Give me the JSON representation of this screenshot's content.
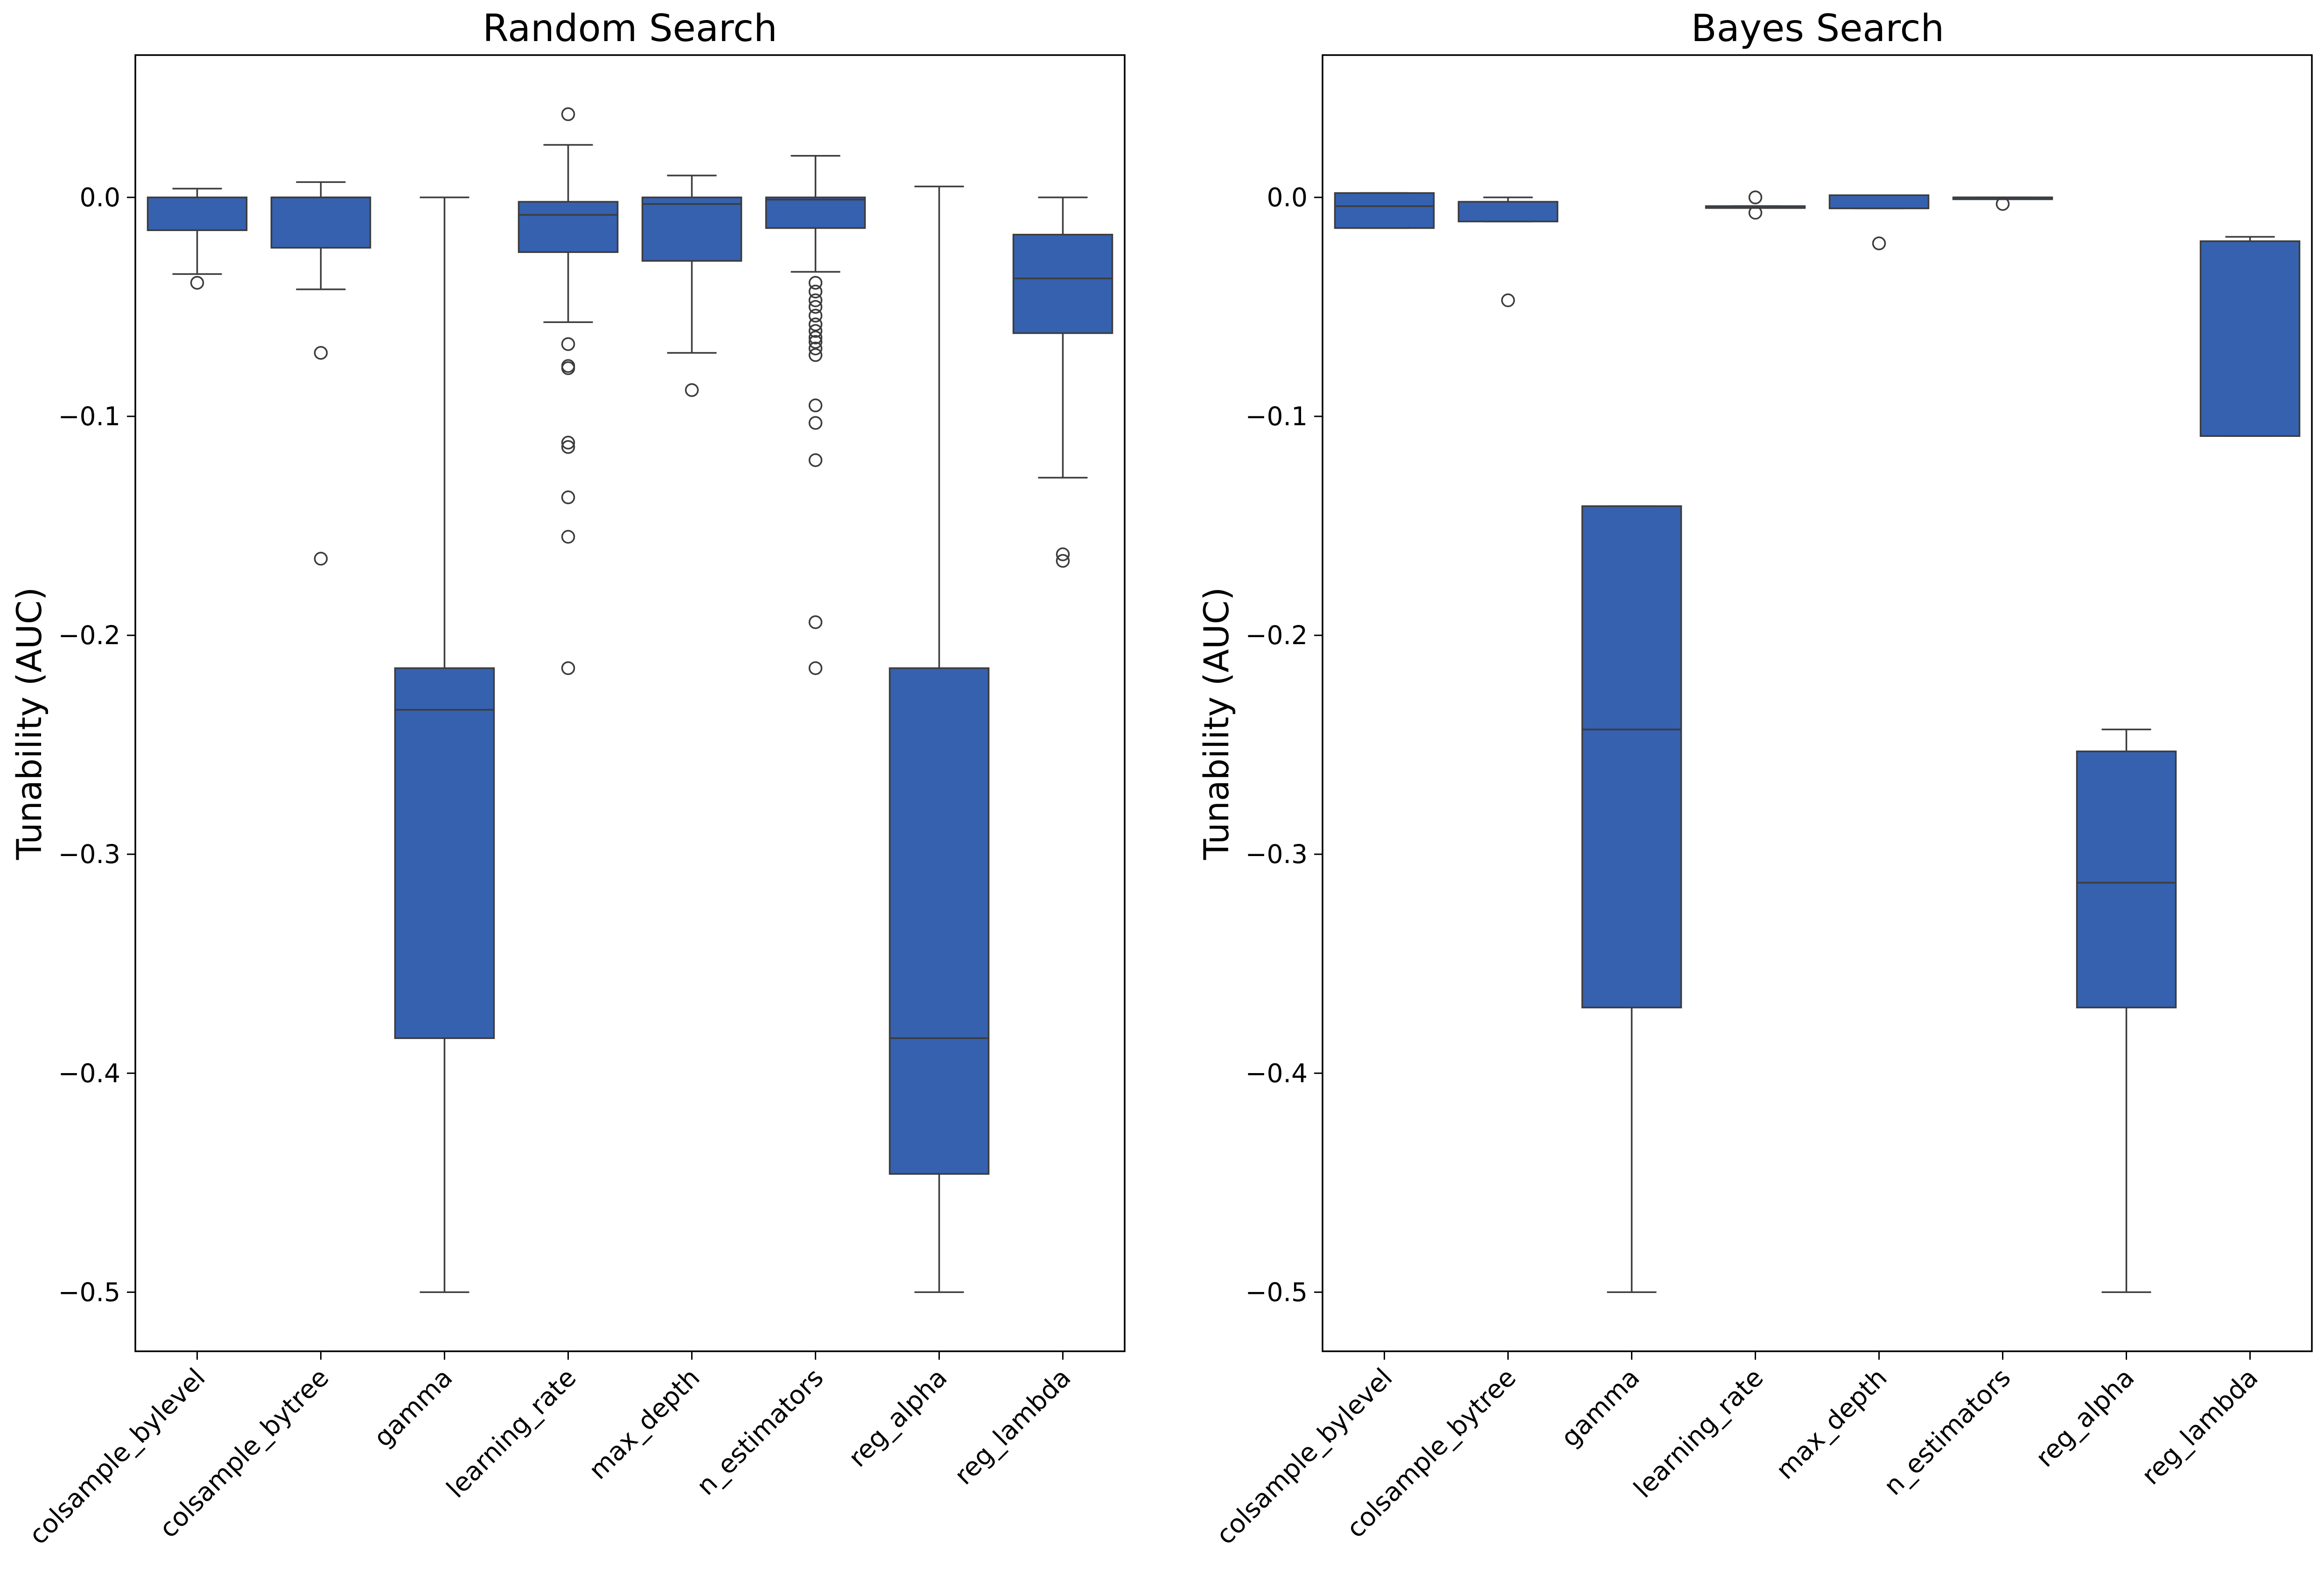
{
  "chart_data": [
    {
      "type": "box",
      "title": "Random Search",
      "ylabel": "Tunability (AUC)",
      "xlabel": "",
      "ylim": [
        -0.527,
        0.065
      ],
      "yticks": [
        0.0,
        -0.1,
        -0.2,
        -0.3,
        -0.4,
        -0.5
      ],
      "ytick_labels": [
        "0.0",
        "−0.1",
        "−0.2",
        "−0.3",
        "−0.4",
        "−0.5"
      ],
      "categories": [
        "colsample_bylevel",
        "colsample_bytree",
        "gamma",
        "learning_rate",
        "max_depth",
        "n_estimators",
        "reg_alpha",
        "reg_lambda"
      ],
      "boxes": [
        {
          "whisker_low": -0.035,
          "q1": -0.015,
          "median": -0.015,
          "q3": 0.0,
          "whisker_high": 0.004,
          "outliers": [
            -0.039
          ]
        },
        {
          "whisker_low": -0.042,
          "q1": -0.023,
          "median": 0.0,
          "q3": 0.0,
          "whisker_high": 0.007,
          "outliers": [
            -0.071,
            -0.165
          ]
        },
        {
          "whisker_low": -0.5,
          "q1": -0.384,
          "median": -0.234,
          "q3": -0.215,
          "whisker_high": 0.0,
          "outliers": []
        },
        {
          "whisker_low": -0.057,
          "q1": -0.025,
          "median": -0.008,
          "q3": -0.002,
          "whisker_high": 0.024,
          "outliers": [
            0.038,
            -0.067,
            -0.077,
            -0.078,
            -0.112,
            -0.114,
            -0.137,
            -0.155,
            -0.215
          ]
        },
        {
          "whisker_low": -0.071,
          "q1": -0.029,
          "median": -0.003,
          "q3": 0.0,
          "whisker_high": 0.01,
          "outliers": [
            -0.088
          ]
        },
        {
          "whisker_low": -0.034,
          "q1": -0.014,
          "median": -0.001,
          "q3": 0.0,
          "whisker_high": 0.019,
          "outliers": [
            -0.039,
            -0.043,
            -0.047,
            -0.05,
            -0.054,
            -0.058,
            -0.061,
            -0.064,
            -0.066,
            -0.069,
            -0.072,
            -0.095,
            -0.103,
            -0.12,
            -0.194,
            -0.215
          ]
        },
        {
          "whisker_low": -0.5,
          "q1": -0.446,
          "median": -0.384,
          "q3": -0.215,
          "whisker_high": 0.005,
          "outliers": []
        },
        {
          "whisker_low": -0.128,
          "q1": -0.062,
          "median": -0.037,
          "q3": -0.017,
          "whisker_high": 0.0,
          "outliers": [
            -0.163,
            -0.166
          ]
        }
      ]
    },
    {
      "type": "box",
      "title": "Bayes Search",
      "ylabel": "Tunability (AUC)",
      "xlabel": "",
      "ylim": [
        -0.527,
        0.065
      ],
      "yticks": [
        0.0,
        -0.1,
        -0.2,
        -0.3,
        -0.4,
        -0.5
      ],
      "ytick_labels": [
        "0.0",
        "−0.1",
        "−0.2",
        "−0.3",
        "−0.4",
        "−0.5"
      ],
      "categories": [
        "colsample_bylevel",
        "colsample_bytree",
        "gamma",
        "learning_rate",
        "max_depth",
        "n_estimators",
        "reg_alpha",
        "reg_lambda"
      ],
      "boxes": [
        {
          "whisker_low": -0.014,
          "q1": -0.014,
          "median": -0.004,
          "q3": 0.002,
          "whisker_high": 0.002,
          "outliers": []
        },
        {
          "whisker_low": -0.011,
          "q1": -0.011,
          "median": -0.002,
          "q3": -0.002,
          "whisker_high": 0.0,
          "outliers": [
            -0.047
          ]
        },
        {
          "whisker_low": -0.5,
          "q1": -0.37,
          "median": -0.243,
          "q3": -0.141,
          "whisker_high": -0.141,
          "outliers": []
        },
        {
          "whisker_low": -0.004,
          "q1": -0.004,
          "median": -0.004,
          "q3": -0.004,
          "whisker_high": -0.004,
          "outliers": [
            0.0,
            -0.007
          ]
        },
        {
          "whisker_low": -0.005,
          "q1": -0.005,
          "median": -0.005,
          "q3": 0.001,
          "whisker_high": 0.001,
          "outliers": [
            -0.021
          ]
        },
        {
          "whisker_low": 0.0,
          "q1": 0.0,
          "median": 0.0,
          "q3": 0.0,
          "whisker_high": 0.0,
          "outliers": [
            -0.003
          ]
        },
        {
          "whisker_low": -0.5,
          "q1": -0.37,
          "median": -0.313,
          "q3": -0.253,
          "whisker_high": -0.243,
          "outliers": []
        },
        {
          "whisker_low": -0.109,
          "q1": -0.109,
          "median": -0.02,
          "q3": -0.02,
          "whisker_high": -0.018,
          "outliers": []
        }
      ]
    }
  ],
  "colors": {
    "box_fill": "#3561AF",
    "line": "#3c3c3c",
    "axis": "#000000",
    "background": "#ffffff"
  }
}
